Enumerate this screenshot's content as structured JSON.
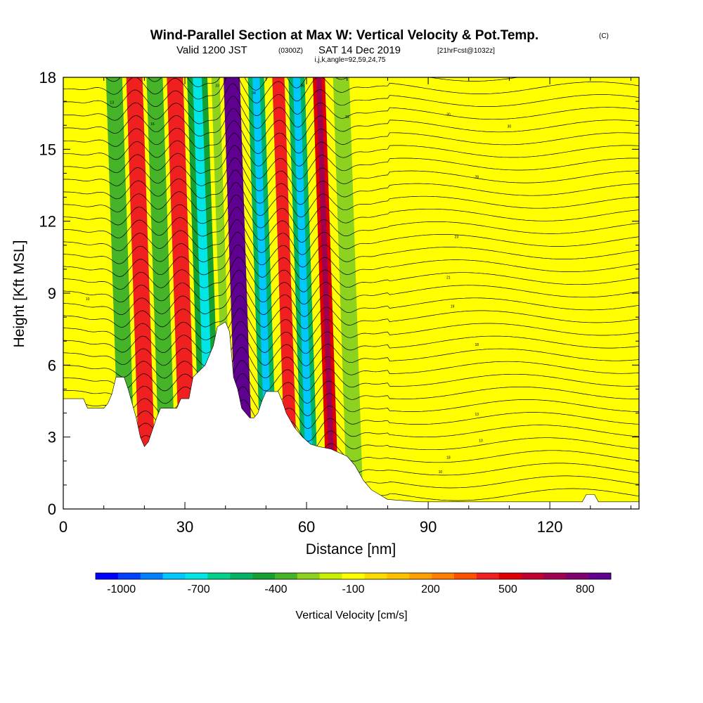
{
  "chart_data": {
    "type": "heatmap",
    "title": "Wind-Parallel Section at Max W: Vertical Velocity & Pot.Temp.",
    "title_mark": "(C)",
    "subtitle": {
      "valid": "Valid 1200 JST",
      "utc": "(0300Z)",
      "date": "SAT 14 Dec 2019",
      "run": "[21hrFcst@1032z]"
    },
    "section_info": "i,j,k,angle=92,59,24,75",
    "xlabel": "Distance [nm]",
    "ylabel": "Height [Kft MSL]",
    "xlim": [
      0,
      142
    ],
    "ylim": [
      0,
      18
    ],
    "x_ticks": [
      0,
      30,
      60,
      90,
      120
    ],
    "y_ticks": [
      0,
      3,
      6,
      9,
      12,
      15,
      18
    ],
    "colorbar": {
      "label": "Vertical Velocity [cm/s]",
      "tick_labels": [
        "-1000",
        "-700",
        "-400",
        "-100",
        "200",
        "500",
        "800"
      ],
      "tick_values": [
        -1000,
        -700,
        -400,
        -100,
        200,
        500,
        800
      ],
      "colors": [
        "#0000ff",
        "#0040ff",
        "#0080ff",
        "#00c8ff",
        "#00e6e6",
        "#00d28c",
        "#00b464",
        "#14a032",
        "#46b428",
        "#8cd21e",
        "#c8f000",
        "#ffff00",
        "#ffdc00",
        "#ffc000",
        "#ffa000",
        "#ff8000",
        "#ff5000",
        "#f02020",
        "#e00000",
        "#c00030",
        "#a00050",
        "#800070",
        "#600090"
      ]
    },
    "vertical_velocity_cells": [
      {
        "x": [
          3,
          14
        ],
        "w_cms": -100
      },
      {
        "x": [
          14,
          18
        ],
        "w_cms": -400
      },
      {
        "x": [
          19,
          23
        ],
        "w_cms": 400
      },
      {
        "x": [
          24,
          28
        ],
        "w_cms": -400
      },
      {
        "x": [
          29,
          33
        ],
        "w_cms": 400
      },
      {
        "x": [
          34,
          39
        ],
        "w_cms": -500
      },
      {
        "x": [
          40,
          42
        ],
        "w_cms": -300
      },
      {
        "x": [
          43,
          47
        ],
        "w_cms": 900
      },
      {
        "x": [
          49,
          53
        ],
        "w_cms": -600
      },
      {
        "x": [
          55,
          58
        ],
        "w_cms": 400
      },
      {
        "x": [
          59,
          63
        ],
        "w_cms": -600
      },
      {
        "x": [
          65,
          68
        ],
        "w_cms": 500
      },
      {
        "x": [
          70,
          74
        ],
        "w_cms": -300
      },
      {
        "x": [
          76,
          80
        ],
        "w_cms": -100
      }
    ],
    "terrain_nm_kft": [
      [
        0,
        4.6
      ],
      [
        5,
        4.6
      ],
      [
        6,
        4.2
      ],
      [
        10,
        4.2
      ],
      [
        11,
        4.4
      ],
      [
        12,
        4.8
      ],
      [
        13,
        5.5
      ],
      [
        15,
        5.5
      ],
      [
        16,
        5.0
      ],
      [
        17,
        4.4
      ],
      [
        18,
        3.8
      ],
      [
        19,
        3.0
      ],
      [
        20,
        2.6
      ],
      [
        21,
        2.8
      ],
      [
        22,
        3.3
      ],
      [
        23,
        3.8
      ],
      [
        24,
        4.2
      ],
      [
        28,
        4.2
      ],
      [
        29,
        4.6
      ],
      [
        31,
        4.6
      ],
      [
        32,
        5.5
      ],
      [
        35,
        6.0
      ],
      [
        37,
        6.8
      ],
      [
        38,
        7.6
      ],
      [
        40,
        7.8
      ],
      [
        41,
        7.4
      ],
      [
        42,
        5.5
      ],
      [
        43,
        5.0
      ],
      [
        44,
        4.2
      ],
      [
        45,
        4.0
      ],
      [
        46,
        3.8
      ],
      [
        47,
        3.8
      ],
      [
        48,
        4.0
      ],
      [
        49,
        4.5
      ],
      [
        50,
        4.9
      ],
      [
        53,
        4.9
      ],
      [
        54,
        4.5
      ],
      [
        55,
        4.0
      ],
      [
        57,
        3.4
      ],
      [
        59,
        3.0
      ],
      [
        61,
        2.7
      ],
      [
        63,
        2.6
      ],
      [
        66,
        2.5
      ],
      [
        70,
        2.2
      ],
      [
        72,
        1.8
      ],
      [
        74,
        1.2
      ],
      [
        76,
        0.8
      ],
      [
        80,
        0.4
      ],
      [
        88,
        0.3
      ],
      [
        128,
        0.3
      ],
      [
        129,
        0.6
      ],
      [
        131,
        0.6
      ],
      [
        132,
        0.3
      ],
      [
        142,
        0.3
      ]
    ],
    "theta_contour_labels": [
      {
        "text": "10",
        "x": 6,
        "y": 8.7
      },
      {
        "text": "13",
        "x": 12,
        "y": 16.9
      },
      {
        "text": "16",
        "x": 22,
        "y": 16.0
      },
      {
        "text": "33",
        "x": 38,
        "y": 17.6
      },
      {
        "text": "34",
        "x": 47,
        "y": 17.3
      },
      {
        "text": "36",
        "x": 59,
        "y": 17.6
      },
      {
        "text": "31",
        "x": 70,
        "y": 16.3
      },
      {
        "text": "30",
        "x": 95,
        "y": 16.4
      },
      {
        "text": "30",
        "x": 110,
        "y": 15.9
      },
      {
        "text": "28",
        "x": 102,
        "y": 13.8
      },
      {
        "text": "23",
        "x": 97,
        "y": 11.3
      },
      {
        "text": "21",
        "x": 95,
        "y": 9.6
      },
      {
        "text": "19",
        "x": 96,
        "y": 8.4
      },
      {
        "text": "18",
        "x": 102,
        "y": 6.8
      },
      {
        "text": "13",
        "x": 102,
        "y": 3.9
      },
      {
        "text": "10",
        "x": 103,
        "y": 2.8
      },
      {
        "text": "18",
        "x": 95,
        "y": 2.1
      },
      {
        "text": "10",
        "x": 93,
        "y": 1.5
      }
    ]
  }
}
